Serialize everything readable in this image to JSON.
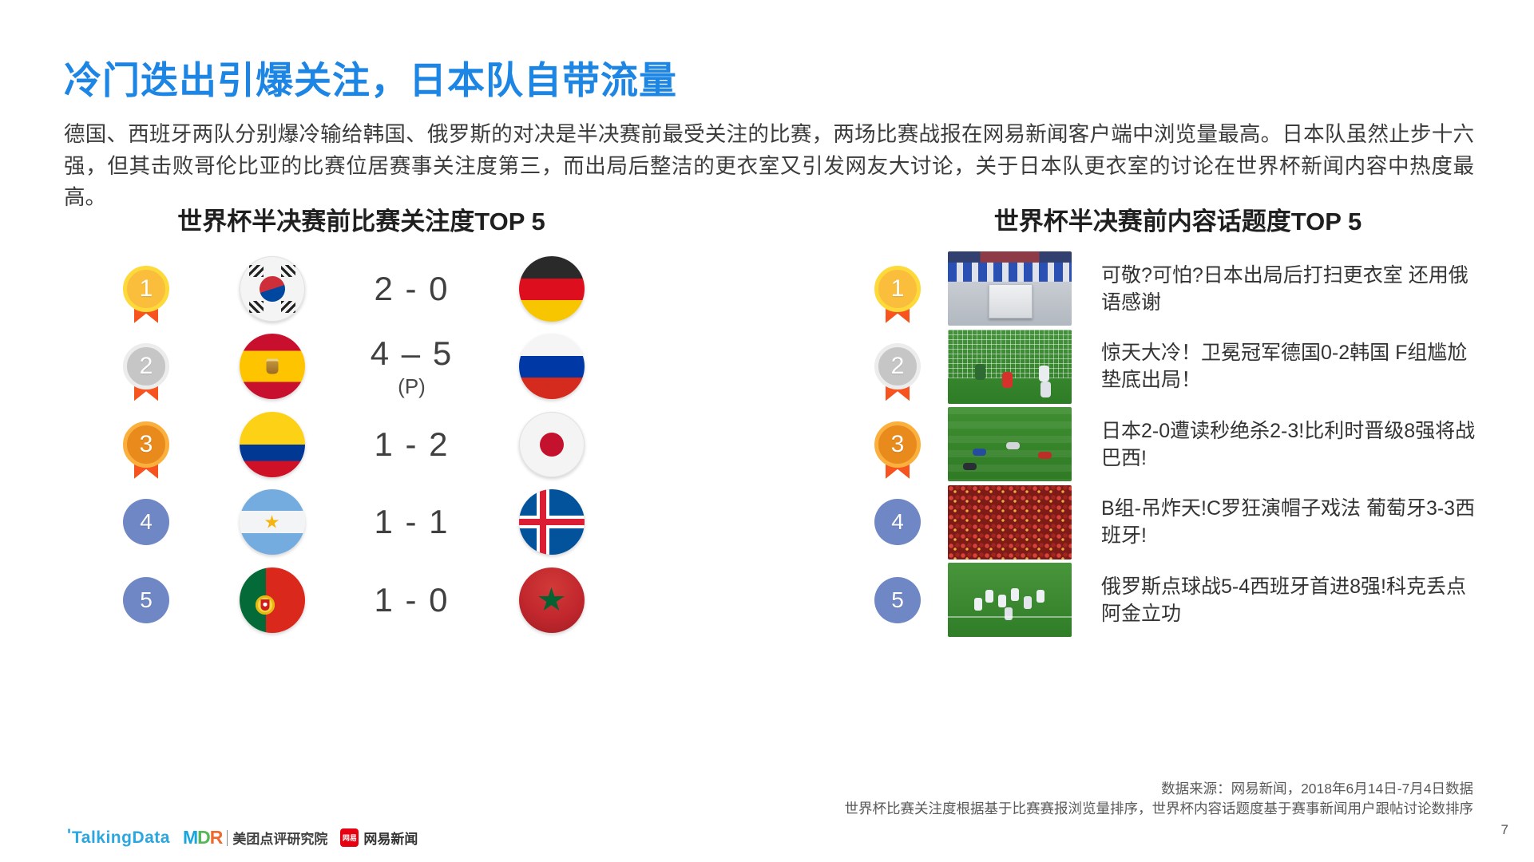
{
  "accent_color": "#1d86e4",
  "ribbon_color": "#f4511e",
  "rank45_color": "#6f87c5",
  "page": {
    "title": "冷门迭出引爆关注，日本队自带流量",
    "body": "德国、西班牙两队分别爆冷输给韩国、俄罗斯的对决是半决赛前最受关注的比赛，两场比赛战报在网易新闻客户端中浏览量最高。日本队虽然止步十六强，但其击败哥伦比亚的比赛位居赛事关注度第三，而出局后整洁的更衣室又引发网友大讨论，关于日本队更衣室的讨论在世界杯新闻内容中热度最高。",
    "page_number": "7"
  },
  "match_ranking": {
    "title": "世界杯半决赛前比赛关注度TOP 5",
    "rows": [
      {
        "rank": "1",
        "medal": "gold",
        "home_team": "south-korea",
        "score": "2 - 0",
        "score_note": "",
        "away_team": "germany"
      },
      {
        "rank": "2",
        "medal": "silver",
        "home_team": "spain",
        "score": "4 – 5",
        "score_note": "(P)",
        "away_team": "russia"
      },
      {
        "rank": "3",
        "medal": "bronze",
        "home_team": "colombia",
        "score": "1 - 2",
        "score_note": "",
        "away_team": "japan"
      },
      {
        "rank": "4",
        "medal": "plain",
        "home_team": "argentina",
        "score": "1 - 1",
        "score_note": "",
        "away_team": "iceland"
      },
      {
        "rank": "5",
        "medal": "plain",
        "home_team": "portugal",
        "score": "1 - 0",
        "score_note": "",
        "away_team": "morocco"
      }
    ]
  },
  "topic_ranking": {
    "title": "世界杯半决赛前内容话题度TOP 5",
    "rows": [
      {
        "rank": "1",
        "medal": "gold",
        "thumbnail": "japan-locker-room",
        "headline": "可敬?可怕?日本出局后打扫更衣室 还用俄语感谢"
      },
      {
        "rank": "2",
        "medal": "silver",
        "thumbnail": "germany-korea-goal",
        "headline": "惊天大冷！卫冕冠军德国0-2韩国 F组尴尬垫底出局！"
      },
      {
        "rank": "3",
        "medal": "bronze",
        "thumbnail": "japan-belgium-match",
        "headline": "日本2-0遭读秒绝杀2-3!比利时晋级8强将战巴西!"
      },
      {
        "rank": "4",
        "medal": "plain",
        "thumbnail": "portugal-fans",
        "headline": "B组-吊炸天!C罗狂演帽子戏法 葡萄牙3-3西班牙!"
      },
      {
        "rank": "5",
        "medal": "plain",
        "thumbnail": "russia-celebration",
        "headline": "俄罗斯点球战5-4西班牙首进8强!科克丢点阿金立功"
      }
    ]
  },
  "footer": {
    "source_line1": "数据来源：网易新闻，2018年6月14日-7月4日数据",
    "source_line2": "世界杯比赛关注度根据基于比赛赛报浏览量排序，世界杯内容话题度基于赛事新闻用户跟帖讨论数排序",
    "logos": {
      "talkingdata": "TalkingData",
      "mdr_m": "M",
      "mdr_d": "D",
      "mdr_r": "R",
      "meituan": "美团点评研究院",
      "netease_icon": "网易",
      "netease": "网易新闻"
    }
  }
}
